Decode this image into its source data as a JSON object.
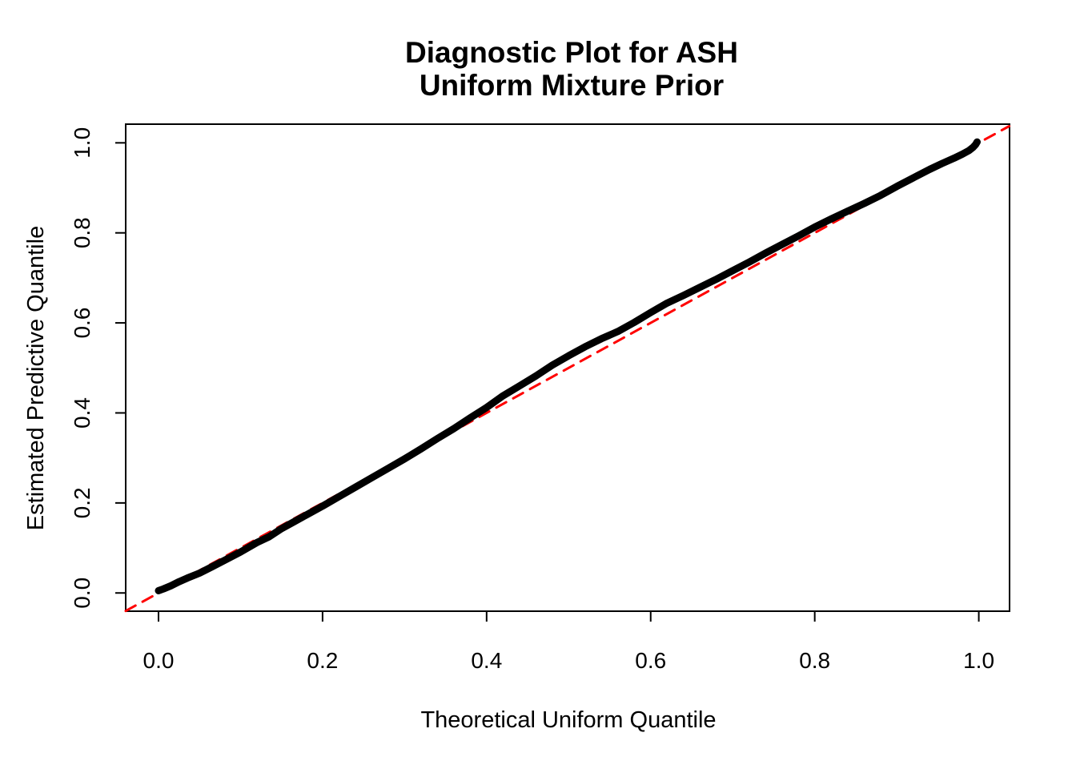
{
  "chart_data": {
    "type": "line",
    "title": "Diagnostic Plot for ASH",
    "subtitle": "Uniform Mixture Prior",
    "xlabel": "Theoretical Uniform Quantile",
    "ylabel": "Estimated Predictive Quantile",
    "xlim": [
      -0.04,
      1.0375
    ],
    "ylim": [
      -0.0405,
      1.0415
    ],
    "x_ticks": [
      0.0,
      0.2,
      0.4,
      0.6,
      0.8,
      1.0
    ],
    "x_tick_labels": [
      "0.0",
      "0.2",
      "0.4",
      "0.6",
      "0.8",
      "1.0"
    ],
    "y_ticks": [
      0.0,
      0.2,
      0.4,
      0.6,
      0.8,
      1.0
    ],
    "y_tick_labels": [
      "0.0",
      "0.2",
      "0.4",
      "0.6",
      "0.8",
      "1.0"
    ],
    "grid": false,
    "legend": "none",
    "colors": {
      "curve": "#000000",
      "reference_line": "#FF0000",
      "axis": "#000000",
      "background": "#FFFFFF"
    },
    "series": [
      {
        "name": "estimated-vs-theoretical-quantiles",
        "style": "solid",
        "width": 9,
        "color_key": "curve",
        "points": [
          [
            0.0,
            0.005
          ],
          [
            0.006,
            0.009
          ],
          [
            0.015,
            0.016
          ],
          [
            0.025,
            0.025
          ],
          [
            0.035,
            0.033
          ],
          [
            0.05,
            0.044
          ],
          [
            0.065,
            0.058
          ],
          [
            0.08,
            0.072
          ],
          [
            0.1,
            0.091
          ],
          [
            0.12,
            0.112
          ],
          [
            0.135,
            0.125
          ],
          [
            0.15,
            0.143
          ],
          [
            0.165,
            0.158
          ],
          [
            0.18,
            0.173
          ],
          [
            0.2,
            0.193
          ],
          [
            0.22,
            0.214
          ],
          [
            0.24,
            0.235
          ],
          [
            0.26,
            0.256
          ],
          [
            0.28,
            0.277
          ],
          [
            0.3,
            0.298
          ],
          [
            0.32,
            0.32
          ],
          [
            0.34,
            0.343
          ],
          [
            0.36,
            0.365
          ],
          [
            0.38,
            0.389
          ],
          [
            0.4,
            0.412
          ],
          [
            0.42,
            0.438
          ],
          [
            0.44,
            0.46
          ],
          [
            0.46,
            0.482
          ],
          [
            0.48,
            0.506
          ],
          [
            0.5,
            0.527
          ],
          [
            0.52,
            0.547
          ],
          [
            0.54,
            0.565
          ],
          [
            0.56,
            0.581
          ],
          [
            0.58,
            0.601
          ],
          [
            0.6,
            0.623
          ],
          [
            0.62,
            0.644
          ],
          [
            0.64,
            0.661
          ],
          [
            0.66,
            0.679
          ],
          [
            0.68,
            0.697
          ],
          [
            0.7,
            0.716
          ],
          [
            0.72,
            0.735
          ],
          [
            0.74,
            0.755
          ],
          [
            0.76,
            0.774
          ],
          [
            0.78,
            0.793
          ],
          [
            0.8,
            0.813
          ],
          [
            0.82,
            0.831
          ],
          [
            0.84,
            0.848
          ],
          [
            0.86,
            0.865
          ],
          [
            0.88,
            0.883
          ],
          [
            0.9,
            0.903
          ],
          [
            0.92,
            0.922
          ],
          [
            0.94,
            0.941
          ],
          [
            0.955,
            0.954
          ],
          [
            0.97,
            0.966
          ],
          [
            0.98,
            0.975
          ],
          [
            0.988,
            0.983
          ],
          [
            0.993,
            0.99
          ],
          [
            0.996,
            0.996
          ],
          [
            0.998,
            1.002
          ]
        ]
      },
      {
        "name": "identity-reference-line",
        "style": "dashed",
        "width": 3,
        "color_key": "reference_line",
        "points": [
          [
            -0.04,
            -0.04
          ],
          [
            1.037,
            1.037
          ]
        ]
      }
    ]
  }
}
